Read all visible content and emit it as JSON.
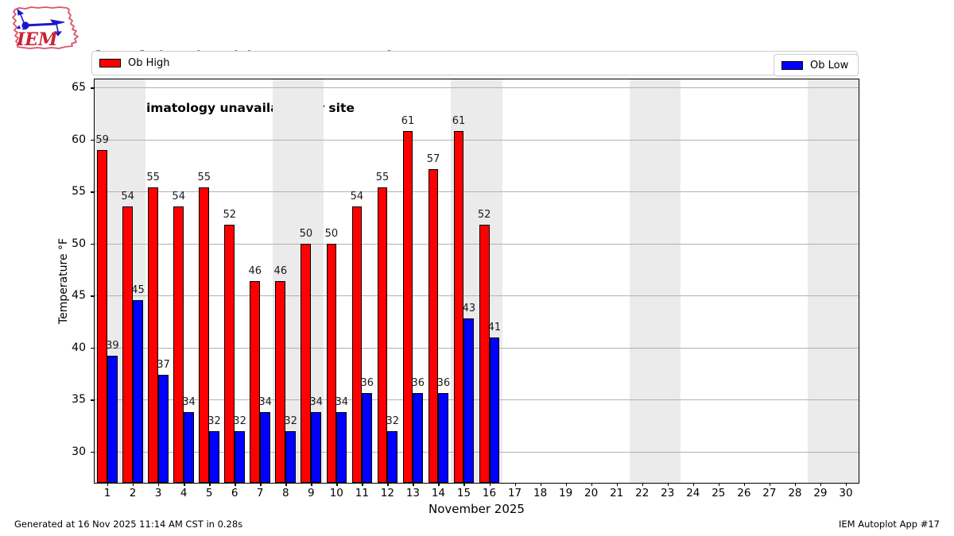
{
  "header": {
    "title_line1": "[LSMA] Alpnach :: High/Low Temperature for Nov 2025",
    "title_line2": "Daily climatology unavailable for site",
    "logo_text": "IEM"
  },
  "legend": {
    "high_label": "Ob High",
    "low_label": "Ob Low"
  },
  "colors": {
    "high": "#ff0000",
    "low": "#0000ff",
    "weekend_band": "#ebebeb",
    "gridline": "#b2b2b2"
  },
  "chart_data": {
    "type": "bar",
    "title": "[LSMA] Alpnach :: High/Low Temperature for Nov 2025",
    "subtitle": "Daily climatology unavailable for site",
    "xlabel": "November 2025",
    "ylabel": "Temperature °F",
    "xlim": [
      0.5,
      30.5
    ],
    "ylim": [
      27.0,
      65.8
    ],
    "yticks": [
      30,
      35,
      40,
      45,
      50,
      55,
      60,
      65
    ],
    "grid": true,
    "legend_position": "top, high left / low right",
    "categories": [
      1,
      2,
      3,
      4,
      5,
      6,
      7,
      8,
      9,
      10,
      11,
      12,
      13,
      14,
      15,
      16,
      17,
      18,
      19,
      20,
      21,
      22,
      23,
      24,
      25,
      26,
      27,
      28,
      29,
      30
    ],
    "weekend_bands": [
      [
        0.5,
        2.5
      ],
      [
        7.5,
        9.5
      ],
      [
        14.5,
        16.5
      ],
      [
        21.5,
        23.5
      ],
      [
        28.5,
        30.5
      ]
    ],
    "series": [
      {
        "name": "Ob High",
        "color": "#ff0000",
        "values": [
          59,
          53.6,
          55.4,
          53.6,
          55.4,
          51.8,
          46.4,
          46.4,
          50,
          50,
          53.6,
          55.4,
          60.8,
          57.2,
          60.8,
          51.8,
          null,
          null,
          null,
          null,
          null,
          null,
          null,
          null,
          null,
          null,
          null,
          null,
          null,
          null
        ],
        "labels": [
          "59",
          "54",
          "55",
          "54",
          "55",
          "52",
          "46",
          "46",
          "50",
          "50",
          "54",
          "55",
          "61",
          "57",
          "61",
          "52",
          "",
          "",
          "",
          "",
          "",
          "",
          "",
          "",
          "",
          "",
          "",
          "",
          "",
          ""
        ]
      },
      {
        "name": "Ob Low",
        "color": "#0000ff",
        "values": [
          39.2,
          44.6,
          37.4,
          33.8,
          32,
          32,
          33.8,
          32,
          33.8,
          33.8,
          35.6,
          32,
          35.6,
          35.6,
          42.8,
          41,
          null,
          null,
          null,
          null,
          null,
          null,
          null,
          null,
          null,
          null,
          null,
          null,
          null,
          null
        ],
        "labels": [
          "39",
          "45",
          "37",
          "34",
          "32",
          "32",
          "34",
          "32",
          "34",
          "34",
          "36",
          "32",
          "36",
          "36",
          "43",
          "41",
          "",
          "",
          "",
          "",
          "",
          "",
          "",
          "",
          "",
          "",
          "",
          "",
          "",
          ""
        ]
      }
    ]
  },
  "footer": {
    "left": "Generated at 16 Nov 2025 11:14 AM CST in 0.28s",
    "right": "IEM Autoplot App #17"
  }
}
